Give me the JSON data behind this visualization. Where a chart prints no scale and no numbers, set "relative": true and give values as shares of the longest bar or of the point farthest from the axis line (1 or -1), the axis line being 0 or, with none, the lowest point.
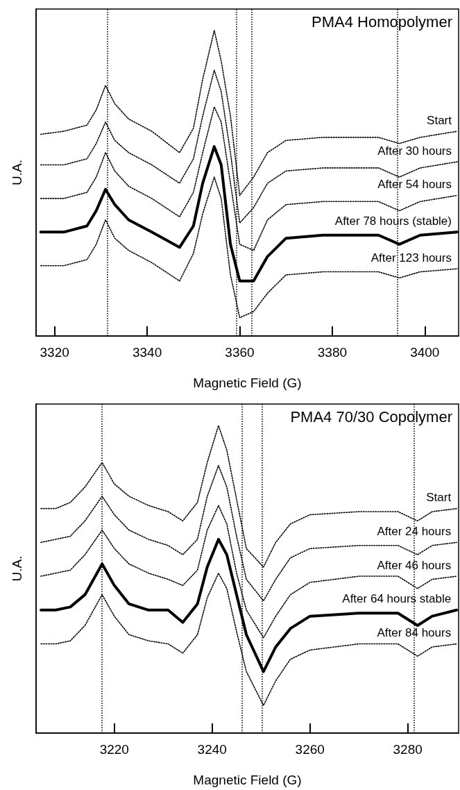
{
  "chart_data": [
    {
      "type": "line",
      "title": "PMA4 Homopolymer",
      "xlabel": "Magnetic Field (G)",
      "ylabel": "U.A.",
      "relative": true,
      "legend": false,
      "marker": "none",
      "x": [
        3317,
        3322,
        3327,
        3329,
        3331,
        3333,
        3336,
        3341,
        3347,
        3350,
        3352,
        3354.5,
        3356,
        3358,
        3360,
        3363,
        3366,
        3370,
        3378,
        3390,
        3394.5,
        3399,
        3407
      ],
      "xlim": [
        3316,
        3407.3
      ],
      "xticks": [
        3320,
        3340,
        3360,
        3380,
        3400
      ],
      "series": [
        {
          "name": "Start",
          "color": "#000000",
          "line_style": "dotted",
          "values": [
            0.66,
            0.67,
            0.69,
            0.74,
            0.82,
            0.76,
            0.71,
            0.67,
            0.6,
            0.68,
            0.84,
            1,
            0.9,
            0.72,
            0.46,
            0.52,
            0.6,
            0.64,
            0.65,
            0.65,
            0.63,
            0.65,
            0.67
          ]
        },
        {
          "name": "After 30 hours",
          "color": "#000000",
          "line_style": "dotted",
          "values": [
            0.56,
            0.56,
            0.58,
            0.63,
            0.7,
            0.64,
            0.6,
            0.56,
            0.5,
            0.58,
            0.72,
            0.87,
            0.8,
            0.6,
            0.37,
            0.42,
            0.5,
            0.54,
            0.55,
            0.55,
            0.52,
            0.55,
            0.57
          ]
        },
        {
          "name": "After 54 hours",
          "color": "#000000",
          "line_style": "dotted",
          "values": [
            0.45,
            0.45,
            0.47,
            0.52,
            0.6,
            0.54,
            0.49,
            0.45,
            0.39,
            0.47,
            0.6,
            0.75,
            0.7,
            0.5,
            0.3,
            0.28,
            0.38,
            0.43,
            0.44,
            0.44,
            0.41,
            0.44,
            0.46
          ]
        },
        {
          "name": "After 78 hours (stable)",
          "color": "#000000",
          "line_style": "solid",
          "values": [
            0.34,
            0.34,
            0.36,
            0.41,
            0.48,
            0.43,
            0.38,
            0.34,
            0.29,
            0.36,
            0.5,
            0.62,
            0.56,
            0.3,
            0.18,
            0.18,
            0.26,
            0.32,
            0.33,
            0.33,
            0.3,
            0.33,
            0.34
          ]
        },
        {
          "name": "After 123 hours",
          "color": "#000000",
          "line_style": "dotted",
          "values": [
            0.23,
            0.23,
            0.25,
            0.3,
            0.38,
            0.32,
            0.28,
            0.24,
            0.18,
            0.27,
            0.4,
            0.52,
            0.45,
            0.2,
            0.06,
            0.08,
            0.14,
            0.2,
            0.21,
            0.21,
            0.19,
            0.21,
            0.22
          ]
        }
      ],
      "ref_lines": [
        {
          "axis": "x",
          "value": 3331.4,
          "color": "#000000",
          "line_style": "dotted"
        },
        {
          "axis": "x",
          "value": 3359.3,
          "color": "#000000",
          "line_style": "dotted"
        },
        {
          "axis": "x",
          "value": 3362.6,
          "color": "#000000",
          "line_style": "dotted"
        },
        {
          "axis": "x",
          "value": 3394.1,
          "color": "#000000",
          "line_style": "dotted"
        }
      ]
    },
    {
      "type": "line",
      "title": "PMA4 70/30 Copolymer",
      "xlabel": "Magnetic Field (G)",
      "ylabel": "U.A.",
      "relative": true,
      "legend": false,
      "marker": "none",
      "x": [
        3205,
        3208,
        3211,
        3214,
        3217.5,
        3220,
        3223,
        3227,
        3231,
        3234,
        3237,
        3239,
        3241.3,
        3243,
        3245,
        3247,
        3250.5,
        3253,
        3256,
        3260,
        3270,
        3278,
        3282,
        3285,
        3290
      ],
      "xlim": [
        3204,
        3290.4
      ],
      "xticks": [
        3220,
        3240,
        3260,
        3280
      ],
      "series": [
        {
          "name": "Start",
          "color": "#000000",
          "line_style": "dotted",
          "values": [
            0.73,
            0.73,
            0.75,
            0.8,
            0.88,
            0.81,
            0.77,
            0.74,
            0.72,
            0.69,
            0.75,
            0.88,
            1,
            0.92,
            0.76,
            0.6,
            0.54,
            0.62,
            0.68,
            0.71,
            0.72,
            0.72,
            0.69,
            0.72,
            0.73
          ]
        },
        {
          "name": "After 24 hours",
          "color": "#000000",
          "line_style": "dotted",
          "values": [
            0.62,
            0.63,
            0.64,
            0.69,
            0.77,
            0.71,
            0.66,
            0.63,
            0.61,
            0.58,
            0.63,
            0.77,
            0.87,
            0.8,
            0.64,
            0.5,
            0.43,
            0.5,
            0.57,
            0.6,
            0.61,
            0.61,
            0.58,
            0.61,
            0.62
          ]
        },
        {
          "name": "After 46 hours",
          "color": "#000000",
          "line_style": "dotted",
          "values": [
            0.51,
            0.52,
            0.53,
            0.58,
            0.66,
            0.6,
            0.55,
            0.52,
            0.5,
            0.48,
            0.53,
            0.66,
            0.74,
            0.68,
            0.52,
            0.4,
            0.31,
            0.38,
            0.45,
            0.49,
            0.51,
            0.51,
            0.47,
            0.5,
            0.51
          ]
        },
        {
          "name": "After 64 hours stable",
          "color": "#000000",
          "line_style": "solid",
          "values": [
            0.4,
            0.4,
            0.41,
            0.45,
            0.55,
            0.48,
            0.42,
            0.4,
            0.4,
            0.36,
            0.42,
            0.54,
            0.63,
            0.58,
            0.45,
            0.32,
            0.2,
            0.28,
            0.34,
            0.38,
            0.39,
            0.39,
            0.35,
            0.38,
            0.4
          ]
        },
        {
          "name": "After 84 hours",
          "color": "#000000",
          "line_style": "dotted",
          "values": [
            0.29,
            0.29,
            0.3,
            0.35,
            0.45,
            0.38,
            0.32,
            0.3,
            0.29,
            0.26,
            0.32,
            0.44,
            0.52,
            0.47,
            0.33,
            0.2,
            0.09,
            0.17,
            0.24,
            0.27,
            0.29,
            0.29,
            0.25,
            0.28,
            0.29
          ]
        }
      ],
      "ref_lines": [
        {
          "axis": "x",
          "value": 3217.4,
          "color": "#000000",
          "line_style": "dotted"
        },
        {
          "axis": "x",
          "value": 3246.1,
          "color": "#000000",
          "line_style": "dotted"
        },
        {
          "axis": "x",
          "value": 3250.2,
          "color": "#000000",
          "line_style": "dotted"
        },
        {
          "axis": "x",
          "value": 3281.3,
          "color": "#000000",
          "line_style": "dotted"
        }
      ]
    }
  ]
}
